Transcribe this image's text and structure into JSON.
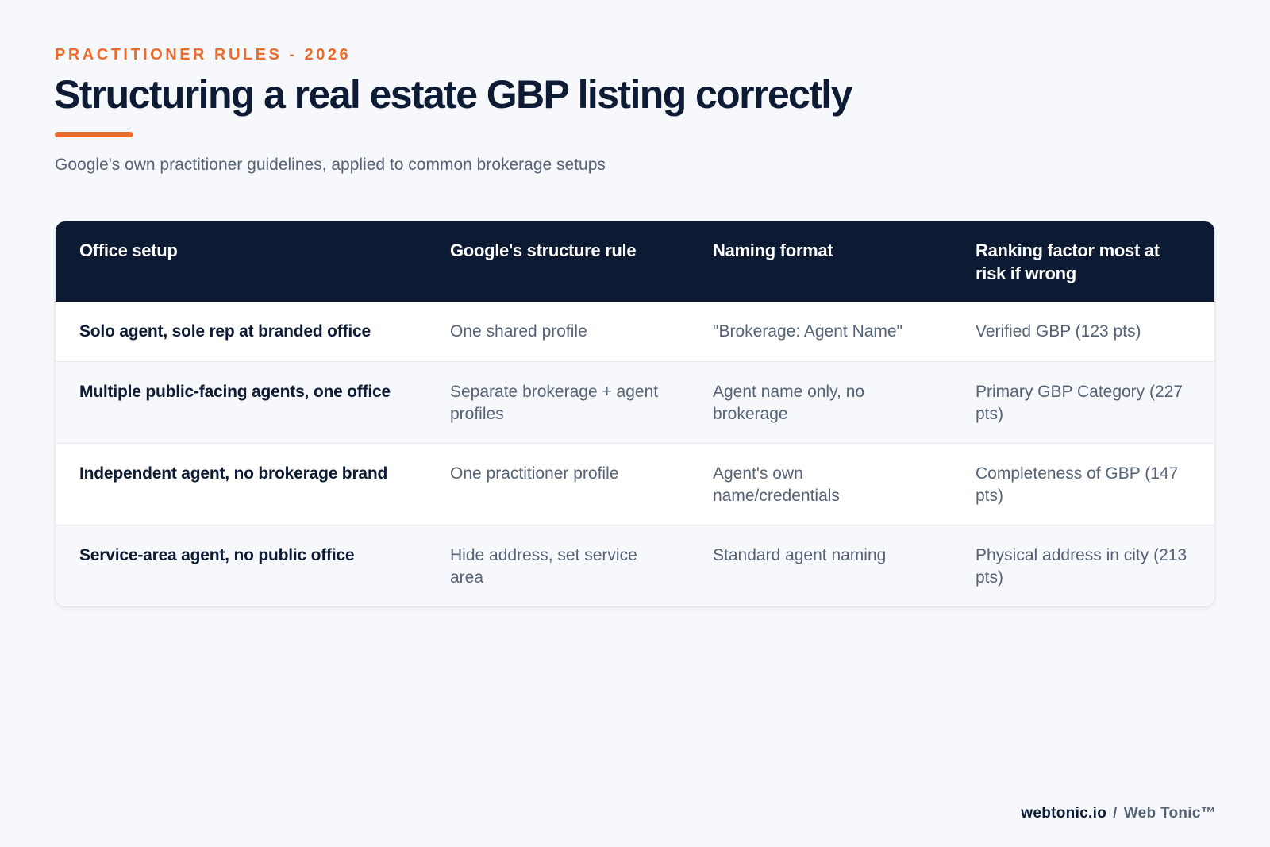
{
  "header": {
    "eyebrow": "PRACTITIONER RULES - 2026",
    "title": "Structuring a real estate GBP listing correctly",
    "subtitle": "Google's own practitioner guidelines, applied to common brokerage setups"
  },
  "table": {
    "columns": [
      "Office setup",
      "Google's structure rule",
      "Naming format",
      "Ranking factor most at risk if wrong"
    ],
    "rows": [
      [
        "Solo agent, sole rep at branded office",
        "One shared profile",
        "\"Brokerage: Agent Name\"",
        "Verified GBP (123 pts)"
      ],
      [
        "Multiple public-facing agents, one office",
        "Separate brokerage + agent profiles",
        "Agent name only, no brokerage",
        "Primary GBP Category (227 pts)"
      ],
      [
        "Independent agent, no brokerage brand",
        "One practitioner profile",
        "Agent's own name/credentials",
        "Completeness of GBP (147 pts)"
      ],
      [
        "Service-area agent, no public office",
        "Hide address, set service area",
        "Standard agent naming",
        "Physical address in city (213 pts)"
      ]
    ]
  },
  "footer": {
    "domain": "webtonic.io",
    "separator": "/",
    "brand": "Web Tonic™"
  },
  "colors": {
    "accent": "#ec6c2e",
    "navy": "#0d1a34",
    "muted_text": "#566276",
    "background": "#f6f8fb"
  }
}
